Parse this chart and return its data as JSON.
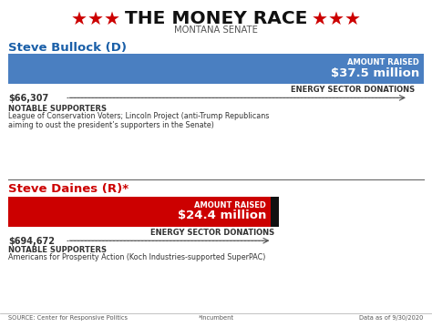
{
  "title_main": "THE MONEY RACE",
  "title_sub": "MONTANA SENATE",
  "star_color": "#cc0000",
  "bg_color": "#ffffff",
  "candidate1_name": "Steve Bullock (D)",
  "candidate1_name_color": "#1a5fa8",
  "candidate1_amount": 37.5,
  "candidate1_amount_label": "AMOUNT RAISED",
  "candidate1_amount_value": "$37.5 million",
  "candidate1_bar_color": "#4a7fc1",
  "candidate1_energy_label": "ENERGY SECTOR DONATIONS",
  "candidate1_energy_value": "$66,307",
  "candidate1_supporters_title": "NOTABLE SUPPORTERS",
  "candidate1_supporters": "League of Conservation Voters; Lincoln Project (anti-Trump Republicans\naiming to oust the president’s supporters in the Senate)",
  "candidate2_name": "Steve Daines (R)*",
  "candidate2_name_color": "#cc0000",
  "candidate2_amount": 24.4,
  "candidate2_amount_label": "AMOUNT RAISED",
  "candidate2_amount_value": "$24.4 million",
  "candidate2_bar_color": "#cc0000",
  "candidate2_bar_accent": "#111111",
  "candidate2_energy_label": "ENERGY SECTOR DONATIONS",
  "candidate2_energy_value": "$694,672",
  "candidate2_supporters_title": "NOTABLE SUPPORTERS",
  "candidate2_supporters": "Americans for Prosperity Action (Koch Industries-supported SuperPAC)",
  "source_text": "SOURCE: Center for Responsive Politics",
  "incumbent_text": "*Incumbent",
  "date_text": "Data as of 9/30/2020",
  "max_amount": 37.5
}
